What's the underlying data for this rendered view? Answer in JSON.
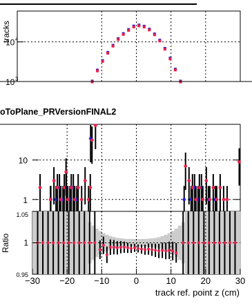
{
  "chart_data": [
    {
      "type": "scatter",
      "panel": "top",
      "ylabel": "tracks",
      "yscale": "log",
      "grid": true,
      "ylim": [
        1000,
        60000
      ],
      "yticks": [
        {
          "value": 1000,
          "base": "10",
          "exp": "3"
        },
        {
          "value": 10000,
          "base": "10",
          "exp": "4"
        }
      ],
      "xlim": [
        -30,
        30
      ],
      "series": [
        {
          "color": "#1f1fd6",
          "x": [
            -12.75,
            -11.25,
            -9.75,
            -8.25,
            -6.75,
            -5.25,
            -3.75,
            -2.25,
            -0.75,
            0.75,
            2.25,
            3.75,
            5.25,
            6.75,
            8.25,
            9.75,
            11.25,
            12.75
          ],
          "y": [
            1000,
            1900,
            3300,
            5300,
            8000,
            11800,
            15800,
            20000,
            24500,
            26000,
            24300,
            20500,
            15500,
            10800,
            6700,
            3800,
            2000,
            1000
          ]
        },
        {
          "color": "#e8204a",
          "x": [
            -12.75,
            -11.25,
            -9.75,
            -8.25,
            -6.75,
            -5.25,
            -3.75,
            -2.25,
            -0.75,
            0.75,
            2.25,
            3.75,
            5.25,
            6.75,
            8.25,
            9.75,
            11.25,
            12.75
          ],
          "y": [
            1000,
            1900,
            3300,
            5300,
            8000,
            11800,
            15800,
            20000,
            24500,
            26000,
            24300,
            20500,
            15500,
            10800,
            6700,
            3800,
            2000,
            1000
          ]
        }
      ]
    },
    {
      "type": "scatter",
      "panel": "middle",
      "title": "oToPlane_PRVersionFINAL2",
      "yscale": "log",
      "grid": true,
      "ylim": [
        0.5,
        80
      ],
      "yticks": [
        {
          "value": 1,
          "label": "1"
        },
        {
          "value": 10,
          "label": "10"
        }
      ],
      "xlim": [
        -30,
        30
      ],
      "series": [
        {
          "color": "#1f1fd6",
          "x": [
            -24.5,
            -23.0,
            -22.0,
            -21.0,
            -20.0,
            -19.0,
            -18.0,
            -17.0,
            -13.0,
            14.0,
            16.0,
            17.0,
            18.0,
            19.0,
            21.0,
            23.0
          ],
          "y": [
            1.0,
            1.0,
            2.0,
            1.0,
            2.0,
            1.0,
            2.0,
            1.0,
            35,
            1.0,
            1.0,
            2.0,
            1.0,
            2.0,
            1.0,
            1.0
          ]
        },
        {
          "color": "#e8204a",
          "x": [
            -28.0,
            -25.0,
            -24.0,
            -23.0,
            -22.0,
            -21.0,
            -20.5,
            -20.0,
            -19.0,
            -18.0,
            -17.0,
            -16.0,
            -15.0,
            -14.0,
            -13.5,
            -13.0,
            -12.0,
            14.0,
            15.0,
            16.0,
            17.0,
            18.0,
            19.0,
            20.0,
            21.0,
            22.0,
            23.0,
            24.0,
            25.0,
            26.0,
            29.5
          ],
          "y": [
            2.0,
            1.0,
            3.0,
            2.0,
            1.0,
            2.0,
            5.0,
            1.0,
            2.0,
            1.0,
            2.0,
            1.0,
            3.0,
            1.0,
            2.0,
            32,
            75,
            7.0,
            3.0,
            2.0,
            1.0,
            2.0,
            1.0,
            3.0,
            1.0,
            2.0,
            1.0,
            2.0,
            1.0,
            1.0,
            9.0
          ]
        }
      ]
    },
    {
      "type": "scatter",
      "panel": "ratio",
      "ylabel": "Ratio",
      "xlabel": "track ref. point z (cm)",
      "grid": true,
      "ylim": [
        0.95,
        1.05
      ],
      "yticks": [
        {
          "value": 0.95,
          "label": "0.95"
        },
        {
          "value": 1.0,
          "label": "1"
        },
        {
          "value": 1.05,
          "label": "1.05"
        }
      ],
      "xlim": [
        -30,
        30
      ],
      "xticks": [
        -30,
        -20,
        -10,
        0,
        10,
        20,
        30
      ],
      "series": [
        {
          "name": "",
          "color": "#e8204a",
          "x": [
            -28.5,
            -27.0,
            -25.5,
            -24.0,
            -22.5,
            -21.0,
            -19.5,
            -18.0,
            -16.5,
            -15.0,
            -13.5,
            -12.0,
            -10.5,
            -9.5,
            -8.5,
            -7.5,
            -6.5,
            -5.5,
            -4.5,
            -3.5,
            -2.5,
            -1.5,
            -0.5,
            0.5,
            1.5,
            2.5,
            3.5,
            4.5,
            5.5,
            6.5,
            7.5,
            8.5,
            9.5,
            10.5,
            11.5,
            13.5,
            15.0,
            16.5,
            18.0,
            19.5,
            21.0,
            22.5,
            24.0,
            25.5,
            27.0,
            28.5
          ],
          "y": [
            1.0,
            1.0,
            1.0,
            1.0,
            1.0,
            1.0,
            1.0,
            1.0,
            1.0,
            1.0,
            1.0,
            1.0,
            0.989,
            0.996,
            0.981,
            0.993,
            0.993,
            0.992,
            0.993,
            0.993,
            0.992,
            0.991,
            0.992,
            0.991,
            0.99,
            0.989,
            0.99,
            0.989,
            0.988,
            0.987,
            0.988,
            0.987,
            0.988,
            0.987,
            0.984,
            1.0,
            1.0,
            1.0,
            1.0,
            1.0,
            1.0,
            1.0,
            1.0,
            1.0,
            1.0,
            1.0
          ]
        }
      ]
    }
  ]
}
